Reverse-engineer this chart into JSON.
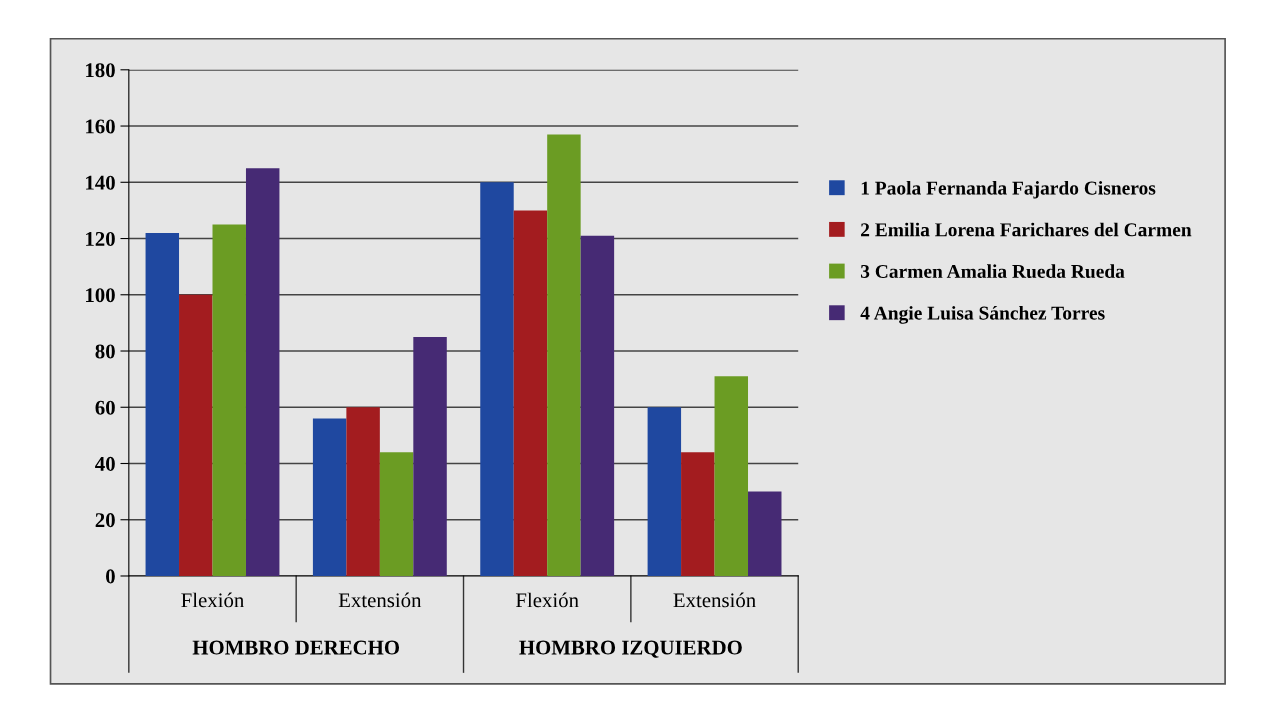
{
  "chart_data": {
    "type": "bar",
    "categories": [
      "Flexión",
      "Extensión",
      "Flexión",
      "Extensión"
    ],
    "series": [
      {
        "name": "1 Paola Fernanda Fajardo Cisneros",
        "color": "#1f48a0",
        "values": [
          122,
          56,
          140,
          60
        ]
      },
      {
        "name": "2 Emilia Lorena Farichares del Carmen",
        "color": "#a31c1f",
        "values": [
          100,
          60,
          130,
          44
        ]
      },
      {
        "name": "3 Carmen Amalia Rueda Rueda",
        "color": "#6b9c23",
        "values": [
          125,
          44,
          157,
          71
        ]
      },
      {
        "name": "4 Angie Luisa Sánchez Torres",
        "color": "#462a74",
        "values": [
          145,
          85,
          121,
          30
        ]
      }
    ],
    "annotations": [
      "HOMBRO DERECHO",
      "HOMBRO IZQUIERDO"
    ],
    "ylim": [
      0,
      180
    ],
    "yticks": [
      0,
      20,
      40,
      60,
      80,
      100,
      120,
      140,
      160,
      180
    ],
    "grid": "y",
    "legend": "right"
  }
}
